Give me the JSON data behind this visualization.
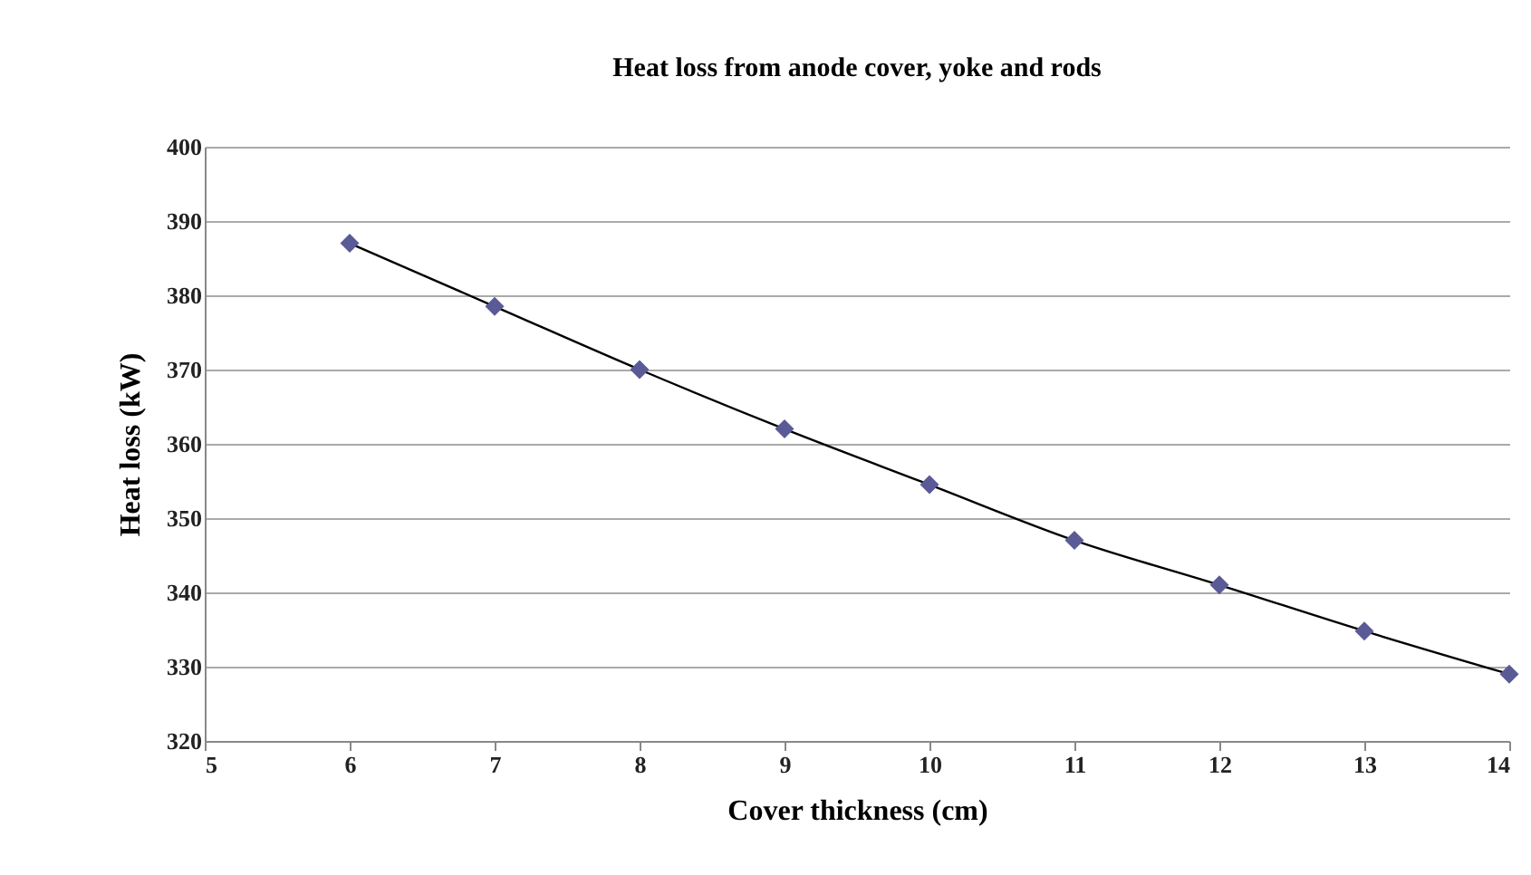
{
  "chart_data": {
    "type": "scatter",
    "title": "Heat loss from anode cover, yoke and rods",
    "xlabel": "Cover thickness (cm)",
    "ylabel": "Heat loss (kW)",
    "x": [
      6,
      7,
      8,
      9,
      10,
      11,
      12,
      13,
      14
    ],
    "series": [
      {
        "color": "#5a5a96",
        "marker": "diamond",
        "values": [
          387,
          378.5,
          370,
          362,
          354.5,
          347,
          341,
          334.8,
          329
        ]
      },
      {
        "type": "line",
        "color": "#000000",
        "marker": "none",
        "values": [
          387,
          378.5,
          370,
          362,
          354.5,
          347,
          341,
          334.8,
          329
        ]
      }
    ],
    "xlim": [
      5,
      14
    ],
    "xticks": [
      5,
      6,
      7,
      8,
      9,
      10,
      11,
      12,
      13,
      14
    ],
    "ylim": [
      320,
      400
    ],
    "yticks": [
      320,
      330,
      340,
      350,
      360,
      370,
      380,
      390,
      400
    ],
    "grid": "y",
    "legend": false
  }
}
